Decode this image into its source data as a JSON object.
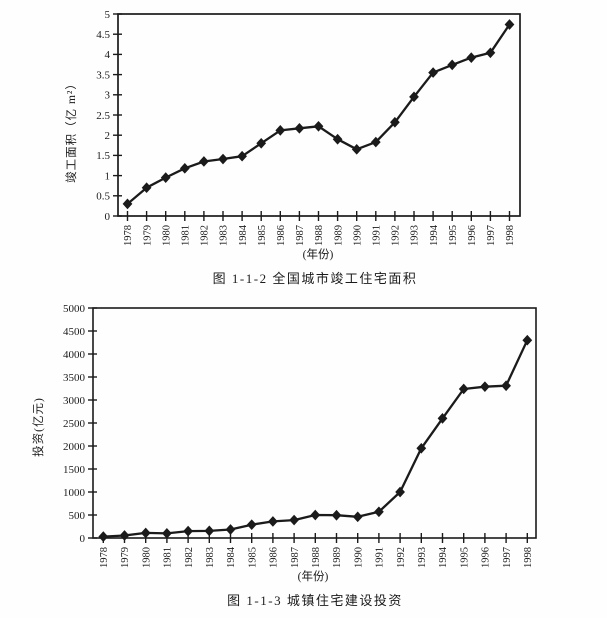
{
  "page": {
    "background": "#fefefe",
    "ink_color": "#1b1b1b",
    "marker_shape": "diamond"
  },
  "chart_data": [
    {
      "type": "line",
      "title": "图 1-1-2  全国城市竣工住宅面积",
      "xlabel": "(年份)",
      "ylabel": "竣工面积（亿 m²）",
      "x": [
        "1978",
        "1979",
        "1980",
        "1981",
        "1982",
        "1983",
        "1984",
        "1985",
        "1986",
        "1987",
        "1988",
        "1989",
        "1990",
        "1991",
        "1992",
        "1993",
        "1994",
        "1995",
        "1996",
        "1997",
        "1998"
      ],
      "series": [
        {
          "name": "竣工面积",
          "values": [
            0.3,
            0.7,
            0.95,
            1.18,
            1.35,
            1.41,
            1.48,
            1.8,
            2.12,
            2.17,
            2.22,
            1.9,
            1.65,
            1.83,
            2.32,
            2.95,
            3.55,
            3.74,
            3.92,
            4.04,
            4.74
          ]
        }
      ],
      "ylim": [
        0,
        5
      ],
      "ytick_step": 0.5,
      "yticks": [
        "0",
        "0.5",
        "1",
        "1.5",
        "2",
        "2.5",
        "3",
        "3.5",
        "4",
        "4.5",
        "5"
      ],
      "grid": false,
      "legend": "none",
      "marker": "diamond",
      "line_color": "#1b1b1b"
    },
    {
      "type": "line",
      "title": "图 1-1-3  城镇住宅建设投资",
      "xlabel": "(年份)",
      "ylabel": "投资(亿元)",
      "x": [
        "1978",
        "1979",
        "1980",
        "1981",
        "1982",
        "1983",
        "1984",
        "1985",
        "1986",
        "1987",
        "1988",
        "1989",
        "1990",
        "1991",
        "1992",
        "1993",
        "1994",
        "1995",
        "1996",
        "1997",
        "1998"
      ],
      "series": [
        {
          "name": "投资",
          "values": [
            30,
            55,
            110,
            100,
            150,
            155,
            185,
            290,
            360,
            390,
            500,
            495,
            460,
            570,
            1000,
            1950,
            2600,
            3240,
            3290,
            3310,
            4300
          ]
        }
      ],
      "ylim": [
        0,
        5000
      ],
      "ytick_step": 500,
      "yticks": [
        "0",
        "500",
        "1000",
        "1500",
        "2000",
        "2500",
        "3000",
        "3500",
        "4000",
        "4500",
        "5000"
      ],
      "grid": false,
      "legend": "none",
      "marker": "diamond",
      "line_color": "#1b1b1b"
    }
  ]
}
